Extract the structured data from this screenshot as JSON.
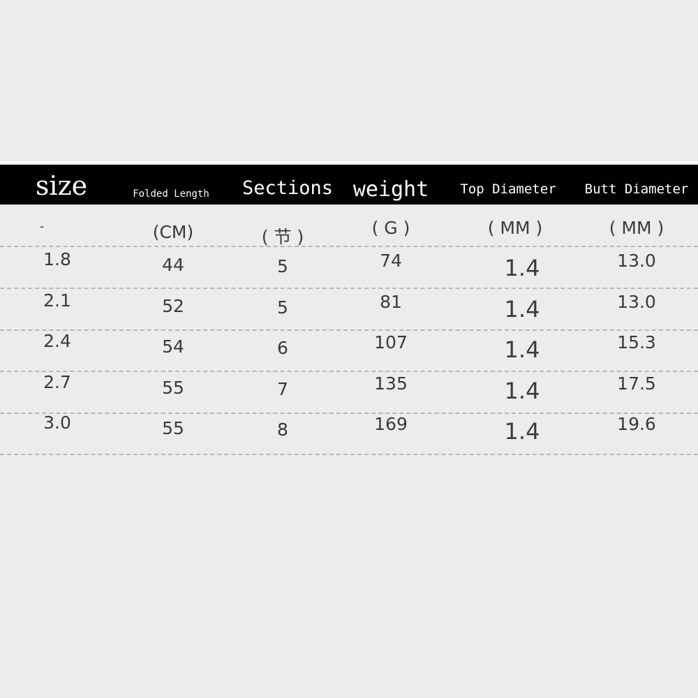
{
  "headers": [
    "size",
    "Folded Length",
    "Sections",
    "weight",
    "Top Diameter",
    "Butt Diameter"
  ],
  "units": [
    "-",
    "(CM)",
    "( 节 )",
    "( G )",
    "( MM )",
    "( MM )"
  ],
  "rows": [
    [
      "1.8",
      "44",
      "5",
      "74",
      "1.4",
      "13.0"
    ],
    [
      "2.1",
      "52",
      "5",
      "81",
      "1.4",
      "13.0"
    ],
    [
      "2.4",
      "54",
      "6",
      "107",
      "1.4",
      "15.3"
    ],
    [
      "2.7",
      "55",
      "7",
      "135",
      "1.4",
      "17.5"
    ],
    [
      "3.0",
      "55",
      "8",
      "169",
      "1.4",
      "19.6"
    ]
  ]
}
